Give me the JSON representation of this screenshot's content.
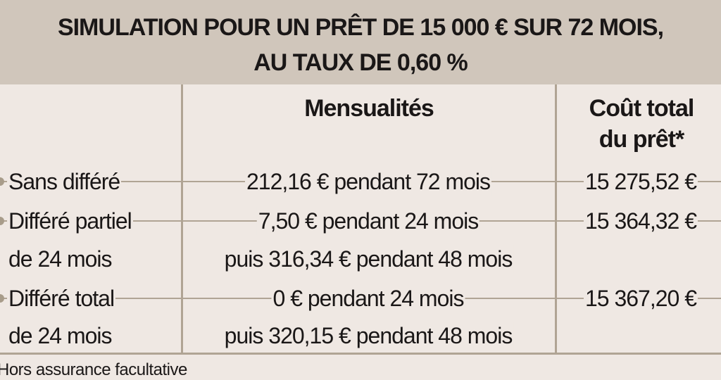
{
  "title": {
    "line1": "SIMULATION POUR UN PRÊT DE 15 000 € SUR 72 MOIS,",
    "line2": "AU TAUX DE 0,60 %"
  },
  "columns": {
    "mensualites": "Mensualités",
    "cout_line1": "Coût total",
    "cout_line2": "du prêt*"
  },
  "rows": [
    {
      "label1": "Sans différé",
      "label2": "",
      "mens1": "212,16 € pendant 72 mois",
      "mens2": "",
      "cout": "15 275,52 €"
    },
    {
      "label1": "Différé partiel",
      "label2": "de 24 mois",
      "mens1": "7,50 € pendant 24 mois",
      "mens2": "puis 316,34 € pendant 48 mois",
      "cout": "15 364,32 €"
    },
    {
      "label1": "Différé total",
      "label2": "de 24 mois",
      "mens1": "0 € pendant 24 mois",
      "mens2": "puis 320,15 € pendant 48 mois",
      "cout": "15 367,20 €"
    }
  ],
  "footnote": "Hors assurance facultative",
  "colors": {
    "background": "#efe8e3",
    "header": "#d0c6bb",
    "rule": "#b0a494"
  }
}
